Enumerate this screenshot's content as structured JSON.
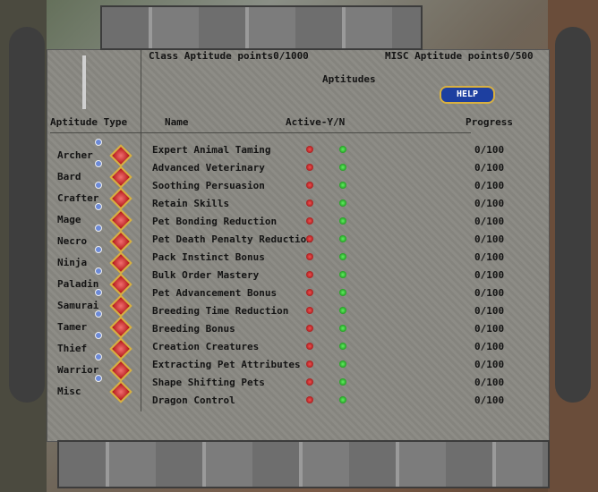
{
  "header": {
    "class_points": "Class Aptitude points0/1000",
    "misc_points": "MISC Aptitude points0/500",
    "title": "Aptitudes",
    "help": "HELP"
  },
  "columns": {
    "type": "Aptitude Type",
    "name": "Name",
    "active": "Active-Y/N",
    "progress": "Progress"
  },
  "classes": [
    "Archer",
    "Bard",
    "Crafter",
    "Mage",
    "Necro",
    "Ninja",
    "Paladin",
    "Samurai",
    "Tamer",
    "Thief",
    "Warrior",
    "Misc"
  ],
  "aptitudes": [
    {
      "name": "Expert Animal Taming",
      "progress": "0/100"
    },
    {
      "name": "Advanced Veterinary",
      "progress": "0/100"
    },
    {
      "name": "Soothing Persuasion",
      "progress": "0/100"
    },
    {
      "name": "Retain Skills",
      "progress": "0/100"
    },
    {
      "name": "Pet Bonding Reduction",
      "progress": "0/100"
    },
    {
      "name": "Pet Death Penalty Reduction",
      "progress": "0/100"
    },
    {
      "name": "Pack Instinct Bonus",
      "progress": "0/100"
    },
    {
      "name": "Bulk Order Mastery",
      "progress": "0/100"
    },
    {
      "name": "Pet Advancement Bonus",
      "progress": "0/100"
    },
    {
      "name": "Breeding Time Reduction",
      "progress": "0/100"
    },
    {
      "name": "Breeding Bonus",
      "progress": "0/100"
    },
    {
      "name": "Creation Creatures",
      "progress": "0/100"
    },
    {
      "name": "Extracting Pet Attributes",
      "progress": "0/100"
    },
    {
      "name": "Shape Shifting Pets",
      "progress": "0/100"
    },
    {
      "name": "Dragon Control",
      "progress": "0/100"
    }
  ]
}
